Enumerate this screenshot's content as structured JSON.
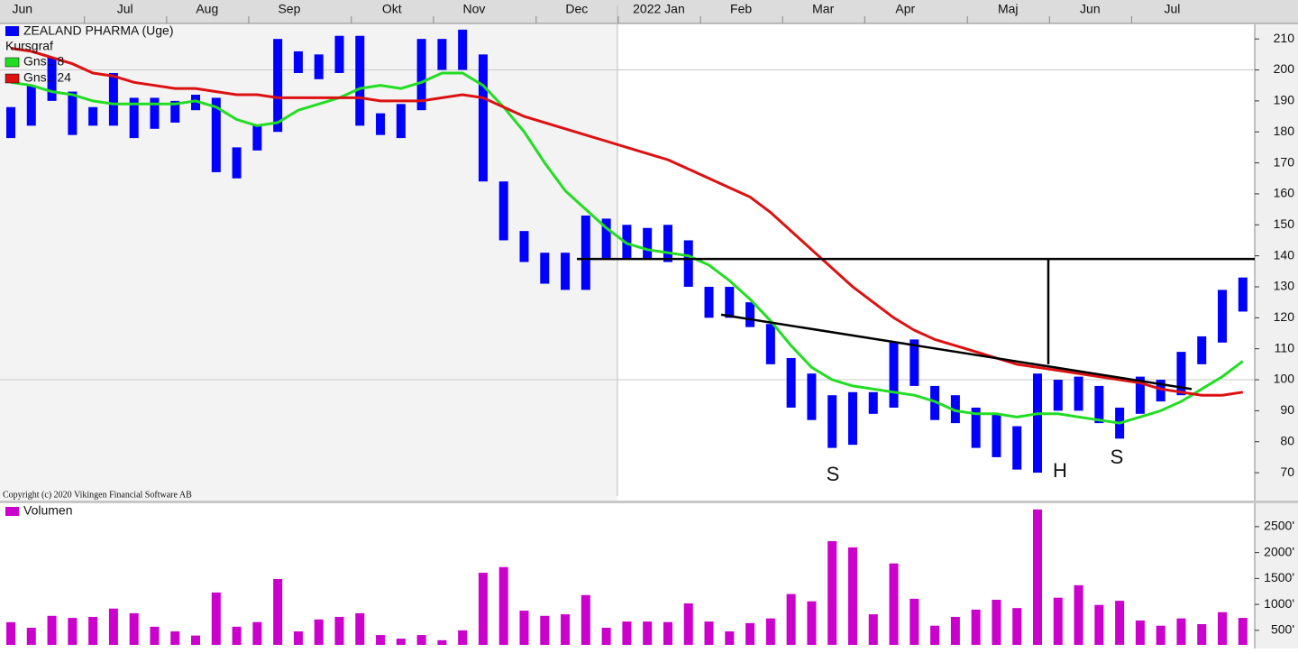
{
  "chart_data": {
    "type": "range-bar",
    "title": "ZEALAND PHARMA (Uge)",
    "bars_name": "Kursgraf",
    "bar_color": "#0000ff",
    "categories": [
      null,
      "Jun",
      null,
      null,
      null,
      null,
      "Jul",
      null,
      null,
      null,
      "Aug",
      null,
      null,
      null,
      "Sep",
      null,
      null,
      null,
      null,
      "Okt",
      null,
      null,
      null,
      "Nov",
      null,
      null,
      null,
      null,
      "Dec",
      null,
      null,
      null,
      "2022 Jan",
      null,
      null,
      null,
      "Feb",
      null,
      null,
      null,
      "Mar",
      null,
      null,
      null,
      "Apr",
      null,
      null,
      null,
      null,
      "Maj",
      null,
      null,
      null,
      "Jun",
      null,
      null,
      null,
      "Jul",
      null,
      null,
      null
    ],
    "high": [
      188,
      195,
      204,
      193,
      188,
      199,
      191,
      191,
      190,
      192,
      191,
      175,
      182,
      210,
      206,
      205,
      211,
      211,
      186,
      189,
      210,
      210,
      213,
      205,
      164,
      148,
      141,
      141,
      153,
      152,
      150,
      149,
      150,
      145,
      130,
      130,
      125,
      118,
      107,
      102,
      95,
      96,
      96,
      112,
      113,
      98,
      95,
      91,
      89,
      85,
      102,
      100,
      101,
      98,
      91,
      101,
      100,
      109,
      114,
      129,
      133
    ],
    "low": [
      178,
      182,
      190,
      179,
      182,
      182,
      178,
      181,
      183,
      187,
      167,
      165,
      174,
      180,
      199,
      197,
      199,
      182,
      179,
      178,
      187,
      200,
      200,
      164,
      145,
      138,
      131,
      129,
      129,
      139,
      139,
      139,
      138,
      130,
      120,
      120,
      117,
      105,
      91,
      87,
      78,
      79,
      89,
      91,
      98,
      87,
      86,
      78,
      75,
      71,
      70,
      90,
      90,
      86,
      81,
      89,
      93,
      95,
      105,
      112,
      122
    ],
    "series": [
      {
        "name": "Gns.: 8",
        "color": "#22dd22",
        "values": [
          196,
          195,
          193,
          192,
          190,
          189,
          189,
          189,
          189,
          190,
          188,
          184,
          182,
          183,
          187,
          189,
          191,
          194,
          195,
          194,
          196,
          199,
          199,
          195,
          188,
          180,
          170,
          161,
          155,
          149,
          144,
          142,
          141,
          140,
          137,
          132,
          126,
          119,
          111,
          104,
          100,
          98,
          97,
          96,
          95,
          93,
          90,
          89,
          89,
          88,
          89,
          89,
          88,
          87,
          86,
          88,
          90,
          93,
          97,
          101,
          106
        ]
      },
      {
        "name": "Gns.: 24",
        "color": "#dd1111",
        "values": [
          207,
          206,
          204,
          202,
          199,
          198,
          196,
          195,
          194,
          194,
          193,
          192,
          192,
          191,
          191,
          191,
          191,
          191,
          190,
          190,
          190,
          191,
          192,
          191,
          188,
          185,
          183,
          181,
          179,
          177,
          175,
          173,
          171,
          168,
          165,
          162,
          159,
          154,
          148,
          142,
          136,
          130,
          125,
          120,
          116,
          113,
          111,
          109,
          107,
          105,
          104,
          103,
          102,
          101,
          100,
          99,
          97,
          96,
          95,
          95,
          96
        ]
      }
    ],
    "ylim": [
      61,
      215
    ],
    "yticks": [
      70,
      80,
      90,
      100,
      110,
      120,
      130,
      140,
      150,
      160,
      170,
      180,
      190,
      200,
      210
    ],
    "grid_values": [
      100,
      200
    ],
    "trendlines": [
      {
        "values": [
          139,
          139
        ]
      },
      {
        "values": [
          121,
          97
        ]
      },
      {
        "values": [
          139,
          105
        ]
      }
    ],
    "annotations": [
      "S",
      "H",
      "S"
    ],
    "copyright": "Copyright (c) 2020 Vikingen Financial Software AB",
    "volume": {
      "name": "Volumen",
      "color": "#cc00cc",
      "values": [
        657,
        550,
        780,
        740,
        760,
        920,
        830,
        570,
        480,
        400,
        1230,
        570,
        660,
        1490,
        480,
        710,
        760,
        830,
        410,
        340,
        410,
        310,
        500,
        1610,
        1720,
        880,
        780,
        810,
        1180,
        550,
        670,
        670,
        660,
        1020,
        670,
        480,
        640,
        730,
        1200,
        1060,
        2220,
        2100,
        810,
        1790,
        1110,
        590,
        760,
        900,
        1090,
        930,
        2830,
        1130,
        1370,
        990,
        1070,
        690,
        590,
        730,
        620,
        850,
        740
      ],
      "ylim": [
        220,
        2950
      ],
      "yticks": [
        {
          "value": 500,
          "label": "500'"
        },
        {
          "value": 1000,
          "label": "1000'"
        },
        {
          "value": 1500,
          "label": "1500'"
        },
        {
          "value": 2000,
          "label": "2000'"
        },
        {
          "value": 2500,
          "label": "2500'"
        }
      ]
    }
  }
}
